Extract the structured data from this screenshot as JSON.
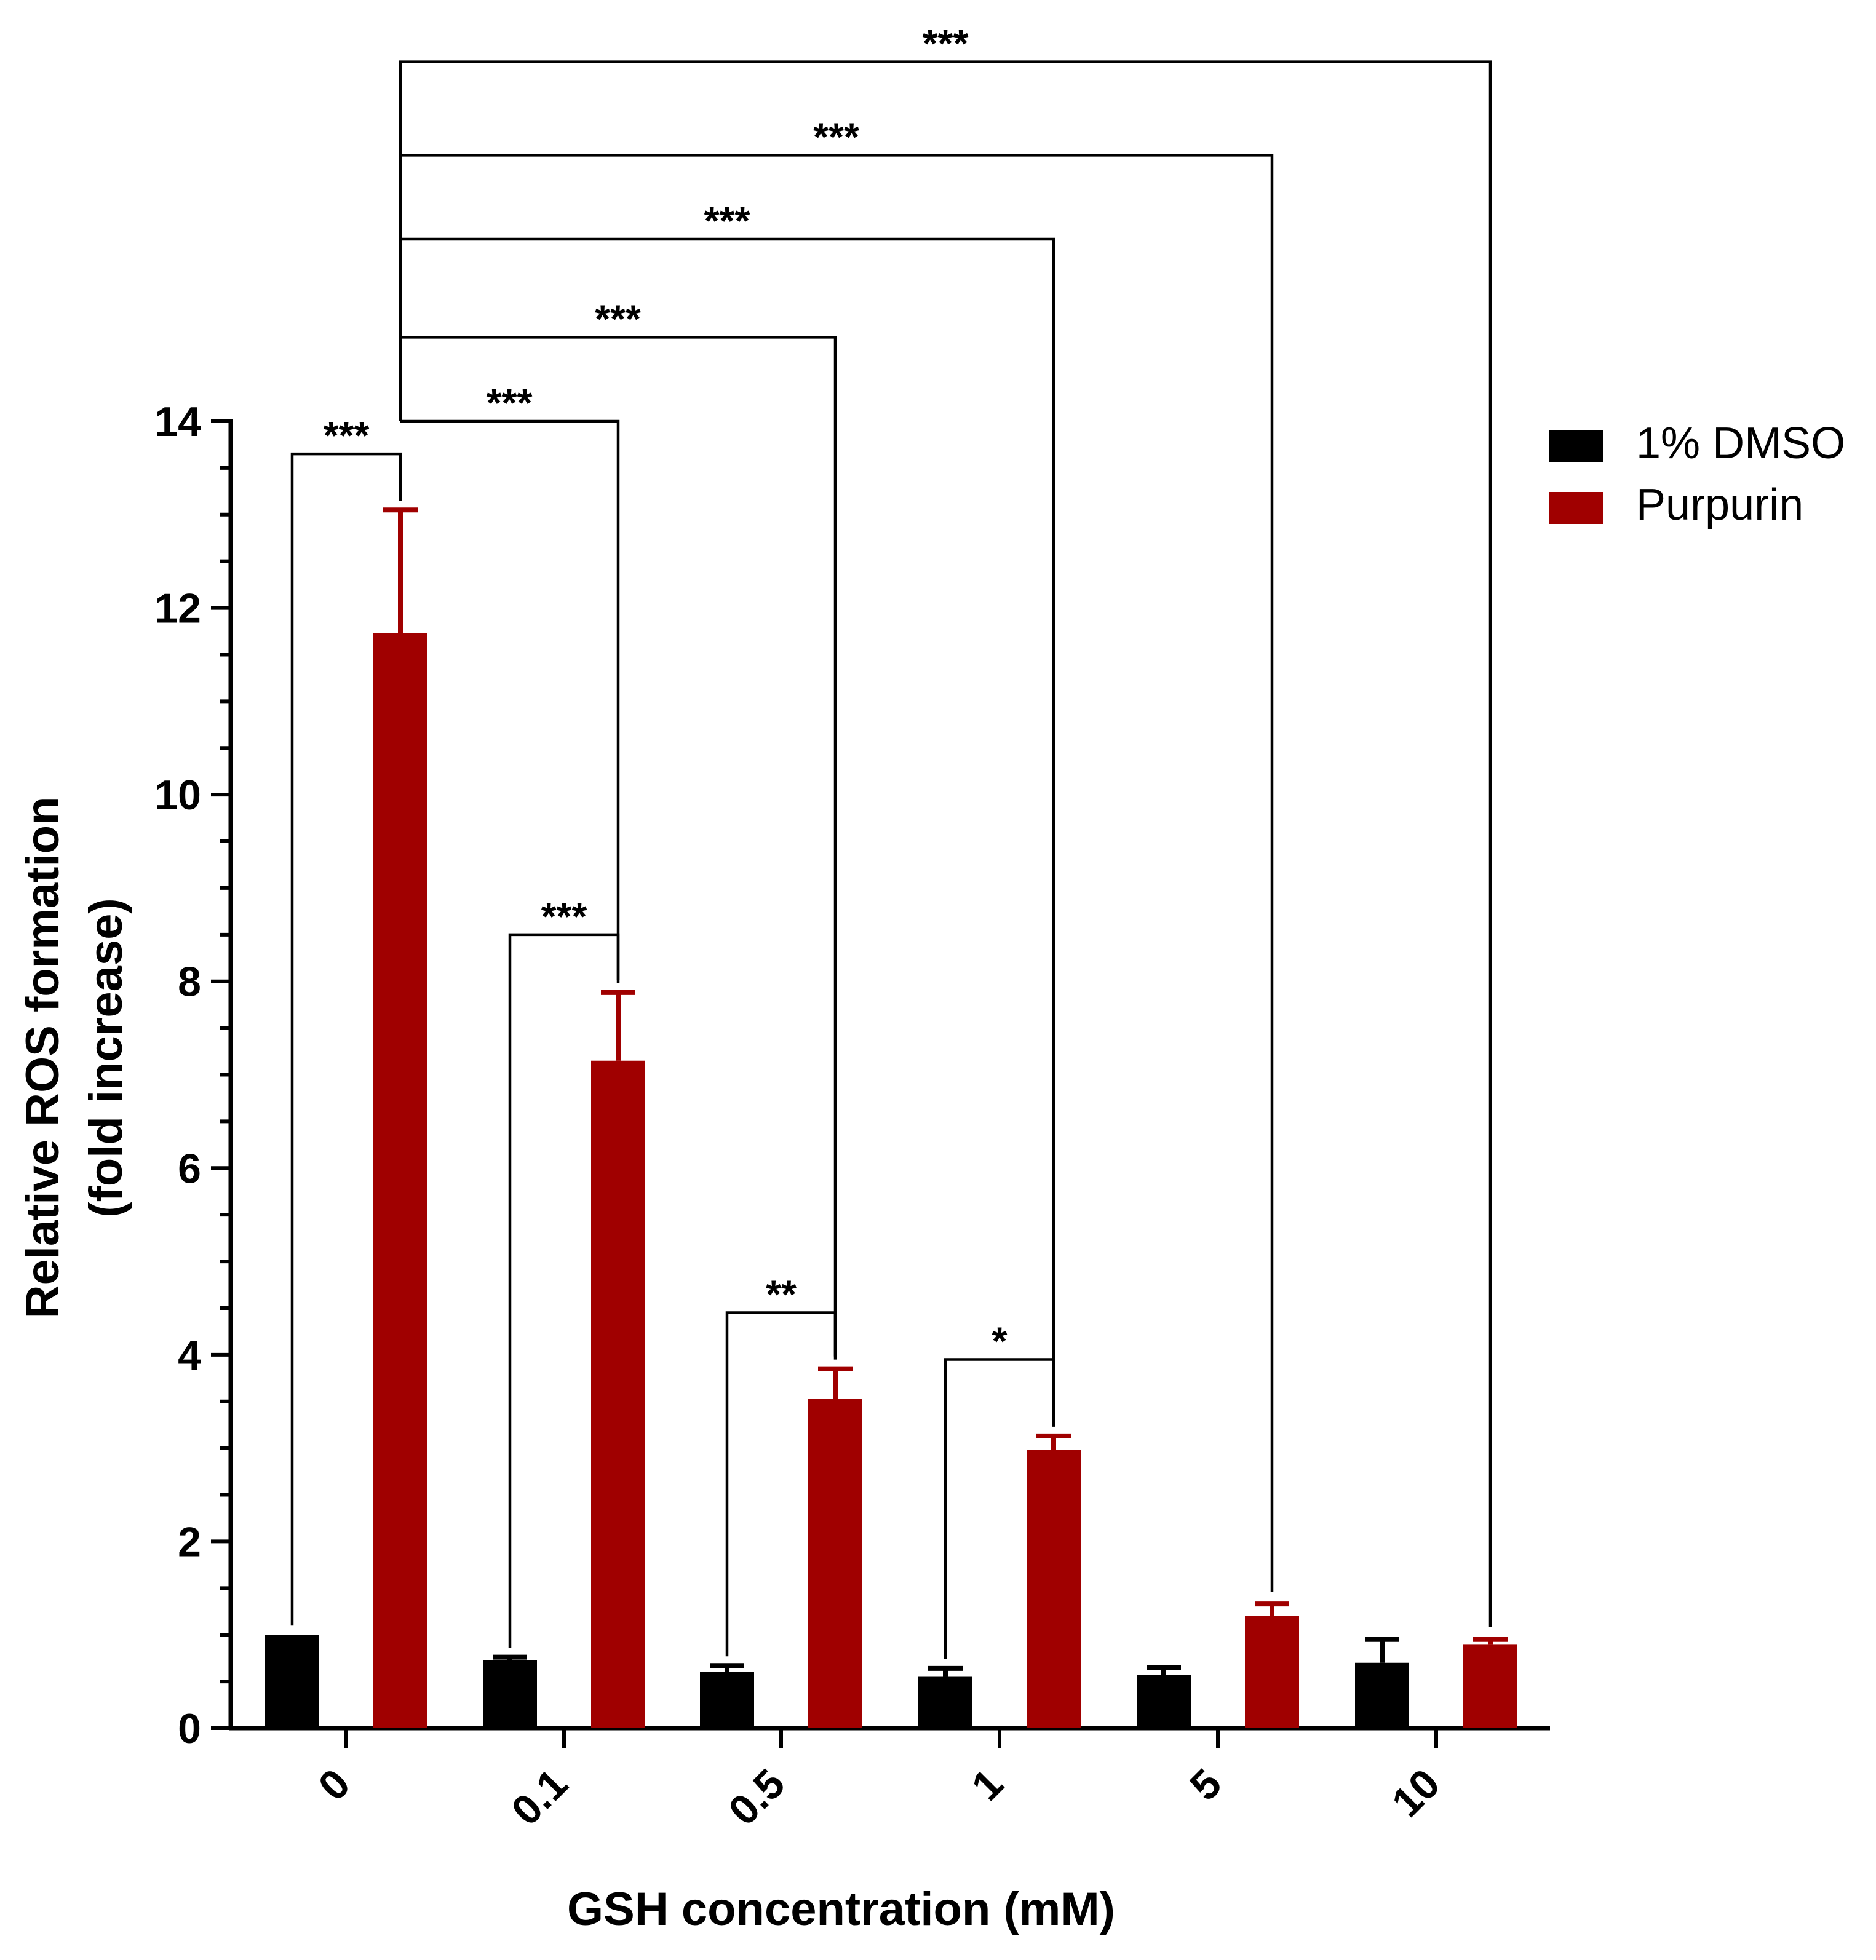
{
  "chart_data": {
    "type": "bar",
    "title": "",
    "xlabel": "GSH concentration (mM)",
    "ylabel_lines": [
      "Relative ROS formation",
      "(fold increase)"
    ],
    "categories": [
      "0",
      "0.1",
      "0.5",
      "1",
      "5",
      "10"
    ],
    "ylim": [
      0,
      14
    ],
    "y_ticks": [
      0,
      2,
      4,
      6,
      8,
      10,
      12,
      14
    ],
    "y_minor_step": 0.5,
    "grid": false,
    "legend_position": "top-right",
    "series": [
      {
        "name": "1% DMSO",
        "color": "#000000",
        "values": [
          1.0,
          0.73,
          0.6,
          0.55,
          0.57,
          0.7
        ],
        "errors": [
          0.0,
          0.03,
          0.07,
          0.09,
          0.08,
          0.25
        ]
      },
      {
        "name": "Purpurin",
        "color": "#a00000",
        "values": [
          11.73,
          7.15,
          3.53,
          2.98,
          1.2,
          0.9
        ],
        "errors": [
          1.32,
          0.73,
          0.32,
          0.15,
          0.13,
          0.05
        ]
      }
    ],
    "significance": [
      {
        "type": "within",
        "category": 0,
        "label": "***",
        "level": 13.65
      },
      {
        "type": "within",
        "category": 1,
        "label": "***",
        "level": 8.5
      },
      {
        "type": "within",
        "category": 2,
        "label": "**",
        "level": 4.45
      },
      {
        "type": "within",
        "category": 3,
        "label": "*",
        "level": 3.95
      },
      {
        "type": "between",
        "from": 0,
        "to": 1,
        "label": "***",
        "level": 14.0
      },
      {
        "type": "between",
        "from": 0,
        "to": 2,
        "label": "***",
        "level": 14.9
      },
      {
        "type": "between",
        "from": 0,
        "to": 3,
        "label": "***",
        "level": 15.95
      },
      {
        "type": "between",
        "from": 0,
        "to": 4,
        "label": "***",
        "level": 16.85
      },
      {
        "type": "between",
        "from": 0,
        "to": 5,
        "label": "***",
        "level": 17.85
      }
    ]
  }
}
